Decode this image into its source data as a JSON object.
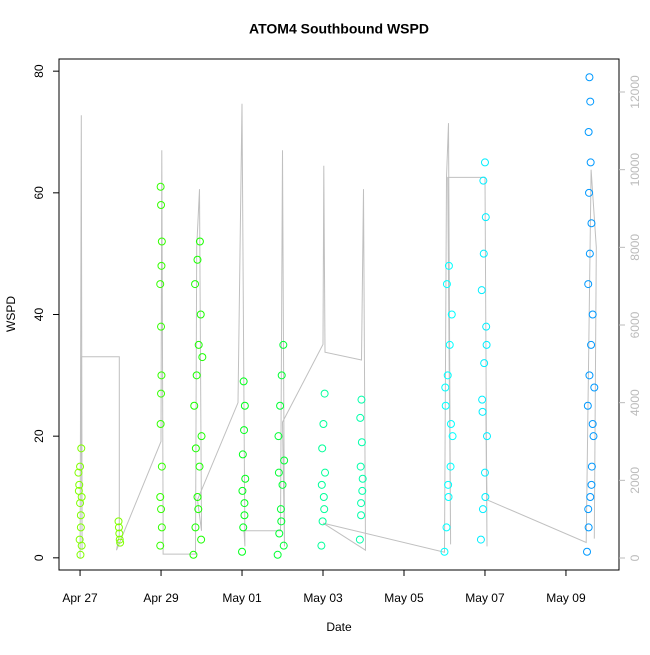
{
  "chart_data": {
    "type": "scatter",
    "title": "ATOM4 Southbound WSPD",
    "x_label": "Date",
    "y_label": "WSPD",
    "xlim": [
      -0.52,
      13.31
    ],
    "ylim": [
      -2,
      82
    ],
    "y2lim": [
      -309,
      12850
    ],
    "xticks": [
      {
        "value": 0,
        "label": "Apr 27"
      },
      {
        "value": 2,
        "label": "Apr 29"
      },
      {
        "value": 4,
        "label": "May 01"
      },
      {
        "value": 6,
        "label": "May 03"
      },
      {
        "value": 8,
        "label": "May 05"
      },
      {
        "value": 10,
        "label": "May 07"
      },
      {
        "value": 12,
        "label": "May 09"
      }
    ],
    "yticks": [
      0,
      20,
      40,
      60,
      80
    ],
    "y2ticks": [
      0,
      2000,
      4000,
      6000,
      8000,
      10000,
      12000
    ],
    "series": [
      {
        "color": "#80ff00",
        "x": [
          -0.04,
          -0.02,
          0,
          0.02,
          0.04,
          0.01,
          0.03,
          -0.03,
          0.02,
          -0.01,
          0,
          0.04
        ],
        "values": [
          14,
          12,
          9,
          5,
          2,
          0.5,
          18,
          11,
          7,
          3,
          15,
          10
        ]
      },
      {
        "color": "#80ff00",
        "x": [
          0.95,
          0.97,
          0.99,
          0.96,
          0.98
        ],
        "values": [
          6,
          4,
          2.5,
          5,
          3
        ]
      },
      {
        "color": "#33ff00",
        "x": [
          1.98,
          2.0,
          2.02,
          1.99,
          2.01,
          2.0,
          1.98,
          2.02,
          2.0,
          1.99,
          2.01,
          2.0,
          1.98,
          2.02
        ],
        "values": [
          2,
          8,
          15,
          22,
          30,
          38,
          45,
          52,
          58,
          61,
          48,
          27,
          10,
          5
        ]
      },
      {
        "color": "#1aff00",
        "x": [
          2.8,
          2.85,
          2.9,
          2.95,
          3.0,
          2.82,
          2.88,
          2.93,
          2.98,
          2.84,
          2.9,
          2.96,
          3.02,
          2.86,
          2.92,
          2.99
        ],
        "values": [
          0.5,
          5,
          10,
          15,
          20,
          25,
          30,
          35,
          40,
          45,
          49,
          52,
          33,
          18,
          8,
          3
        ]
      },
      {
        "color": "#00ff1a",
        "x": [
          4.0,
          4.03,
          4.06,
          4.08,
          4.02,
          4.05,
          4.07,
          4.04,
          4.01,
          4.06
        ],
        "values": [
          1,
          5,
          9,
          13,
          17,
          21,
          25,
          29,
          11,
          7
        ]
      },
      {
        "color": "#00ff33",
        "x": [
          4.88,
          4.92,
          4.96,
          5.0,
          5.04,
          4.9,
          4.94,
          4.98,
          5.02,
          4.91,
          4.97,
          5.03
        ],
        "values": [
          0.5,
          4,
          8,
          12,
          16,
          20,
          25,
          30,
          35,
          14,
          6,
          2
        ]
      },
      {
        "color": "#00ff99",
        "x": [
          5.96,
          5.99,
          6.02,
          6.05,
          5.98,
          6.01,
          6.04,
          5.97,
          6.03
        ],
        "values": [
          2,
          6,
          10,
          14,
          18,
          22,
          27,
          12,
          8
        ]
      },
      {
        "color": "#00ffaa",
        "x": [
          6.91,
          6.94,
          6.97,
          6.93,
          6.96,
          6.92,
          6.95,
          6.98,
          6.94
        ],
        "values": [
          3,
          7,
          11,
          15,
          19,
          23,
          26,
          13,
          9
        ]
      },
      {
        "color": "#00ffff",
        "x": [
          9.0,
          9.05,
          9.1,
          9.15,
          9.2,
          9.03,
          9.08,
          9.13,
          9.18,
          9.06,
          9.11,
          9.02,
          9.16,
          9.09
        ],
        "values": [
          1,
          5,
          10,
          15,
          20,
          25,
          30,
          35,
          40,
          45,
          48,
          28,
          22,
          12
        ]
      },
      {
        "color": "#00eeff",
        "x": [
          9.9,
          9.95,
          10.0,
          10.05,
          9.93,
          9.98,
          10.03,
          9.92,
          9.97,
          10.02,
          9.96,
          10.0,
          10.04,
          9.94,
          10.01
        ],
        "values": [
          3,
          8,
          14,
          20,
          26,
          32,
          38,
          44,
          50,
          56,
          62,
          65,
          35,
          24,
          10
        ]
      },
      {
        "color": "#0099ff",
        "x": [
          12.52,
          12.56,
          12.6,
          12.64,
          12.68,
          12.54,
          12.58,
          12.62,
          12.66,
          12.55,
          12.59,
          12.63,
          12.57,
          12.61,
          12.56,
          12.6,
          12.58,
          12.7,
          12.66,
          12.63,
          12.55
        ],
        "values": [
          1,
          5,
          10,
          15,
          20,
          25,
          30,
          35,
          40,
          45,
          50,
          55,
          60,
          65,
          70,
          75,
          79,
          28,
          22,
          12,
          8
        ]
      },
      {
        "color": "#c0c0c0",
        "axis": "y2",
        "line": true,
        "x": [
          0,
          0.03,
          0.05,
          0.02,
          0.97,
          0.97,
          0.9,
          2.0,
          2.02,
          2.05,
          2.05,
          2.85,
          2.88,
          2.95,
          3.0,
          2.9,
          3.9,
          4.0,
          4.07,
          4.05,
          4.95,
          5.0,
          5.05,
          5.0,
          6.0,
          6.02,
          6.05,
          6.95,
          7.0,
          7.05,
          6.0,
          9.0,
          9.05,
          9.1,
          9.15,
          9.08,
          10.0,
          10.05,
          10.02,
          10.05,
          12.5,
          12.62,
          12.75,
          12.7
        ],
        "values": [
          0,
          11400,
          200,
          5180,
          5180,
          600,
          200,
          3000,
          10500,
          800,
          100,
          100,
          8000,
          9500,
          700,
          1500,
          4000,
          11700,
          300,
          700,
          700,
          10500,
          300,
          3500,
          5500,
          10100,
          5300,
          5100,
          9500,
          200,
          900,
          150,
          9800,
          11200,
          350,
          9800,
          9800,
          300,
          4000,
          1500,
          400,
          10000,
          8000,
          500
        ]
      }
    ]
  }
}
